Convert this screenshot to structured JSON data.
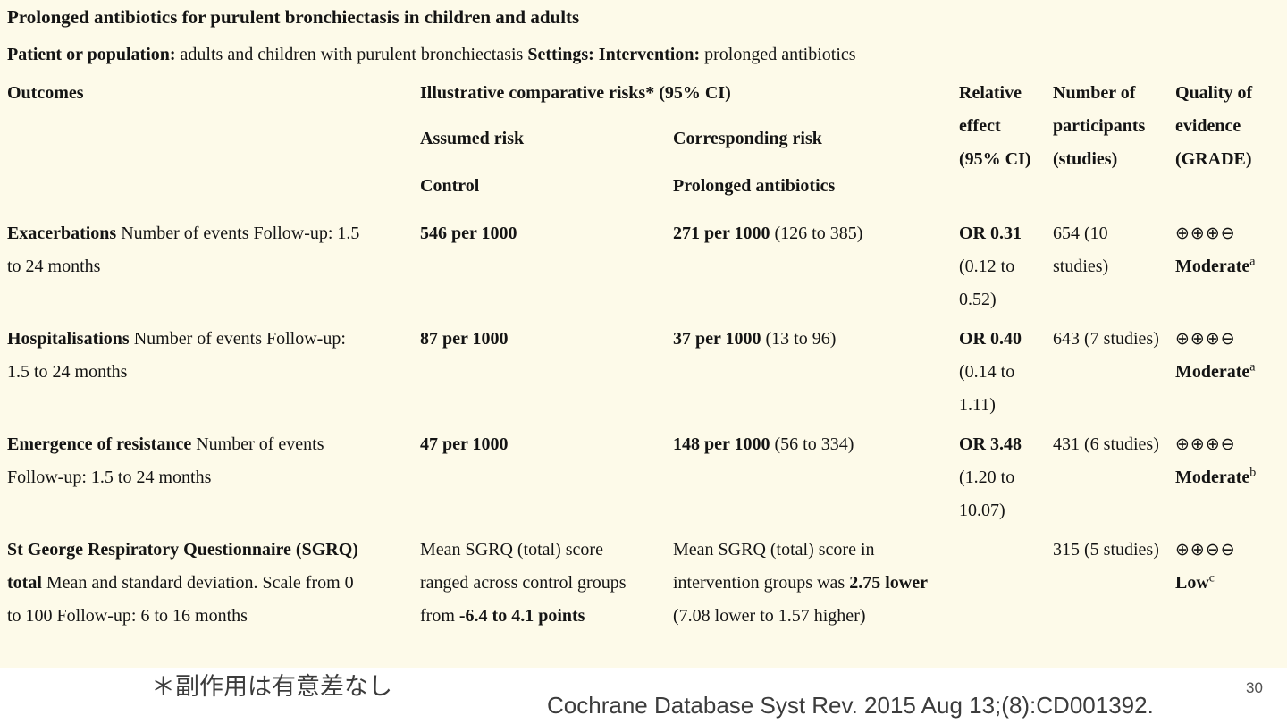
{
  "slide_title": "Prolonged antibiotics for purulent bronchiectasis in children and adults",
  "population_line": [
    {
      "t": "Patient or population: ",
      "b": true
    },
    {
      "t": "adults and children with purulent bronchiectasis ",
      "b": false
    },
    {
      "t": "Settings: ",
      "b": true
    },
    {
      "t": "Intervention: ",
      "b": true
    },
    {
      "t": "prolonged antibiotics",
      "b": false
    }
  ],
  "table": {
    "header": {
      "outcomes": "Outcomes",
      "illustrative": "Illustrative comparative risks* (95% CI)",
      "assumed_risk": "Assumed risk",
      "corresponding_risk": "Corresponding risk",
      "control": "Control",
      "prolonged_antibiotics": "Prolonged antibiotics",
      "relative_effect": "Relative effect (95% CI)",
      "participants": "Number of participants (studies)",
      "quality": "Quality of evidence (GRADE)"
    },
    "rows": [
      {
        "outcome": [
          {
            "t": "Exacerbations ",
            "b": true
          },
          {
            "t": "Number of events Follow-up: 1.5 to 24 months",
            "b": false
          }
        ],
        "assumed": [
          {
            "t": "546 per 1000",
            "b": true
          }
        ],
        "corresponding": [
          {
            "t": "271 per 1000",
            "b": true
          },
          {
            "t": " (126 to 385)",
            "b": false
          }
        ],
        "relative": [
          {
            "t": "OR 0.31",
            "b": true
          },
          {
            "t": " (0.12 to 0.52)",
            "b": false
          }
        ],
        "participants": "654 (10 studies)",
        "grade_symbols": "⊕⊕⊕⊖",
        "grade_label": "Moderate",
        "grade_note": "a"
      },
      {
        "outcome": [
          {
            "t": "Hospitalisations ",
            "b": true
          },
          {
            "t": "Number of events Follow-up: 1.5 to 24 months",
            "b": false
          }
        ],
        "assumed": [
          {
            "t": "87 per 1000",
            "b": true
          }
        ],
        "corresponding": [
          {
            "t": "37 per 1000",
            "b": true
          },
          {
            "t": " (13 to 96)",
            "b": false
          }
        ],
        "relative": [
          {
            "t": "OR 0.40",
            "b": true
          },
          {
            "t": " (0.14 to 1.11)",
            "b": false
          }
        ],
        "participants": "643 (7 studies)",
        "grade_symbols": "⊕⊕⊕⊖",
        "grade_label": "Moderate",
        "grade_note": "a"
      },
      {
        "outcome": [
          {
            "t": "Emergence of resistance ",
            "b": true
          },
          {
            "t": "Number of events Follow-up: 1.5 to 24 months",
            "b": false
          }
        ],
        "assumed": [
          {
            "t": "47 per 1000",
            "b": true
          }
        ],
        "corresponding": [
          {
            "t": "148 per 1000",
            "b": true
          },
          {
            "t": " (56 to 334)",
            "b": false
          }
        ],
        "relative": [
          {
            "t": "OR 3.48",
            "b": true
          },
          {
            "t": " (1.20 to 10.07)",
            "b": false
          }
        ],
        "participants": "431 (6 studies)",
        "grade_symbols": "⊕⊕⊕⊖",
        "grade_label": "Moderate",
        "grade_note": "b"
      },
      {
        "outcome": [
          {
            "t": "St George Respiratory Questionnaire (SGRQ) total ",
            "b": true
          },
          {
            "t": "Mean and standard deviation. Scale from 0 to 100 Follow-up: 6 to 16 months",
            "b": false
          }
        ],
        "assumed": [
          {
            "t": "Mean SGRQ (total) score ranged across control groups from ",
            "b": false
          },
          {
            "t": "-6.4 to 4.1 points",
            "b": true
          }
        ],
        "corresponding": [
          {
            "t": "Mean SGRQ (total) score in intervention groups was ",
            "b": false
          },
          {
            "t": "2.75 lower",
            "b": true
          },
          {
            "t": " (7.08 lower to 1.57 higher)",
            "b": false
          }
        ],
        "relative": [],
        "participants": "315 (5 studies)",
        "grade_symbols": "⊕⊕⊖⊖",
        "grade_label": "Low",
        "grade_note": "c"
      }
    ]
  },
  "footer": {
    "note_jp": "＊副作用は有意差なし",
    "citation": "Cochrane Database Syst Rev. 2015 Aug 13;(8):CD001392.",
    "page_number": "30"
  },
  "colors": {
    "panel_background": "#fdfae9",
    "page_background": "#ffffff",
    "table_text": "#141414",
    "footer_text": "#3c3c3c"
  }
}
